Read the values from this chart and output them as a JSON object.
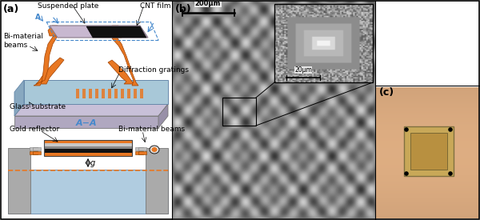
{
  "fig_width": 6.0,
  "fig_height": 2.75,
  "dpi": 100,
  "bg_color": "#ffffff",
  "border_color": "#000000",
  "panel_a_label": "(a)",
  "panel_b_label": "(b)",
  "panel_c_label": "(c)",
  "label_fontsize": 9,
  "annotation_fontsize": 7,
  "orange_color": "#E87722",
  "light_purple": "#C8B8D0",
  "light_blue_substrate": "#A8C8D8",
  "black_color": "#000000",
  "gray_color": "#808080",
  "light_gray": "#C0C0C0",
  "dark_gray": "#404040",
  "blue_dashed": "#4488CC",
  "white_color": "#FFFFFF",
  "gold_color": "#C8A000",
  "annotations": {
    "suspended_plate": "Suspended plate",
    "cnt_film": "CNT film",
    "bi_material_beams": "Bi-material\nbeams",
    "diffraction_gratings": "Diffraction gratings",
    "glass_substrate": "Glass substrate",
    "aa_label": "A−A",
    "gold_reflector": "Gold reflector",
    "bi_material_beams2": "Bi-material beams",
    "g_label": "g",
    "scale_200": "200μm",
    "scale_20": "20μm"
  }
}
